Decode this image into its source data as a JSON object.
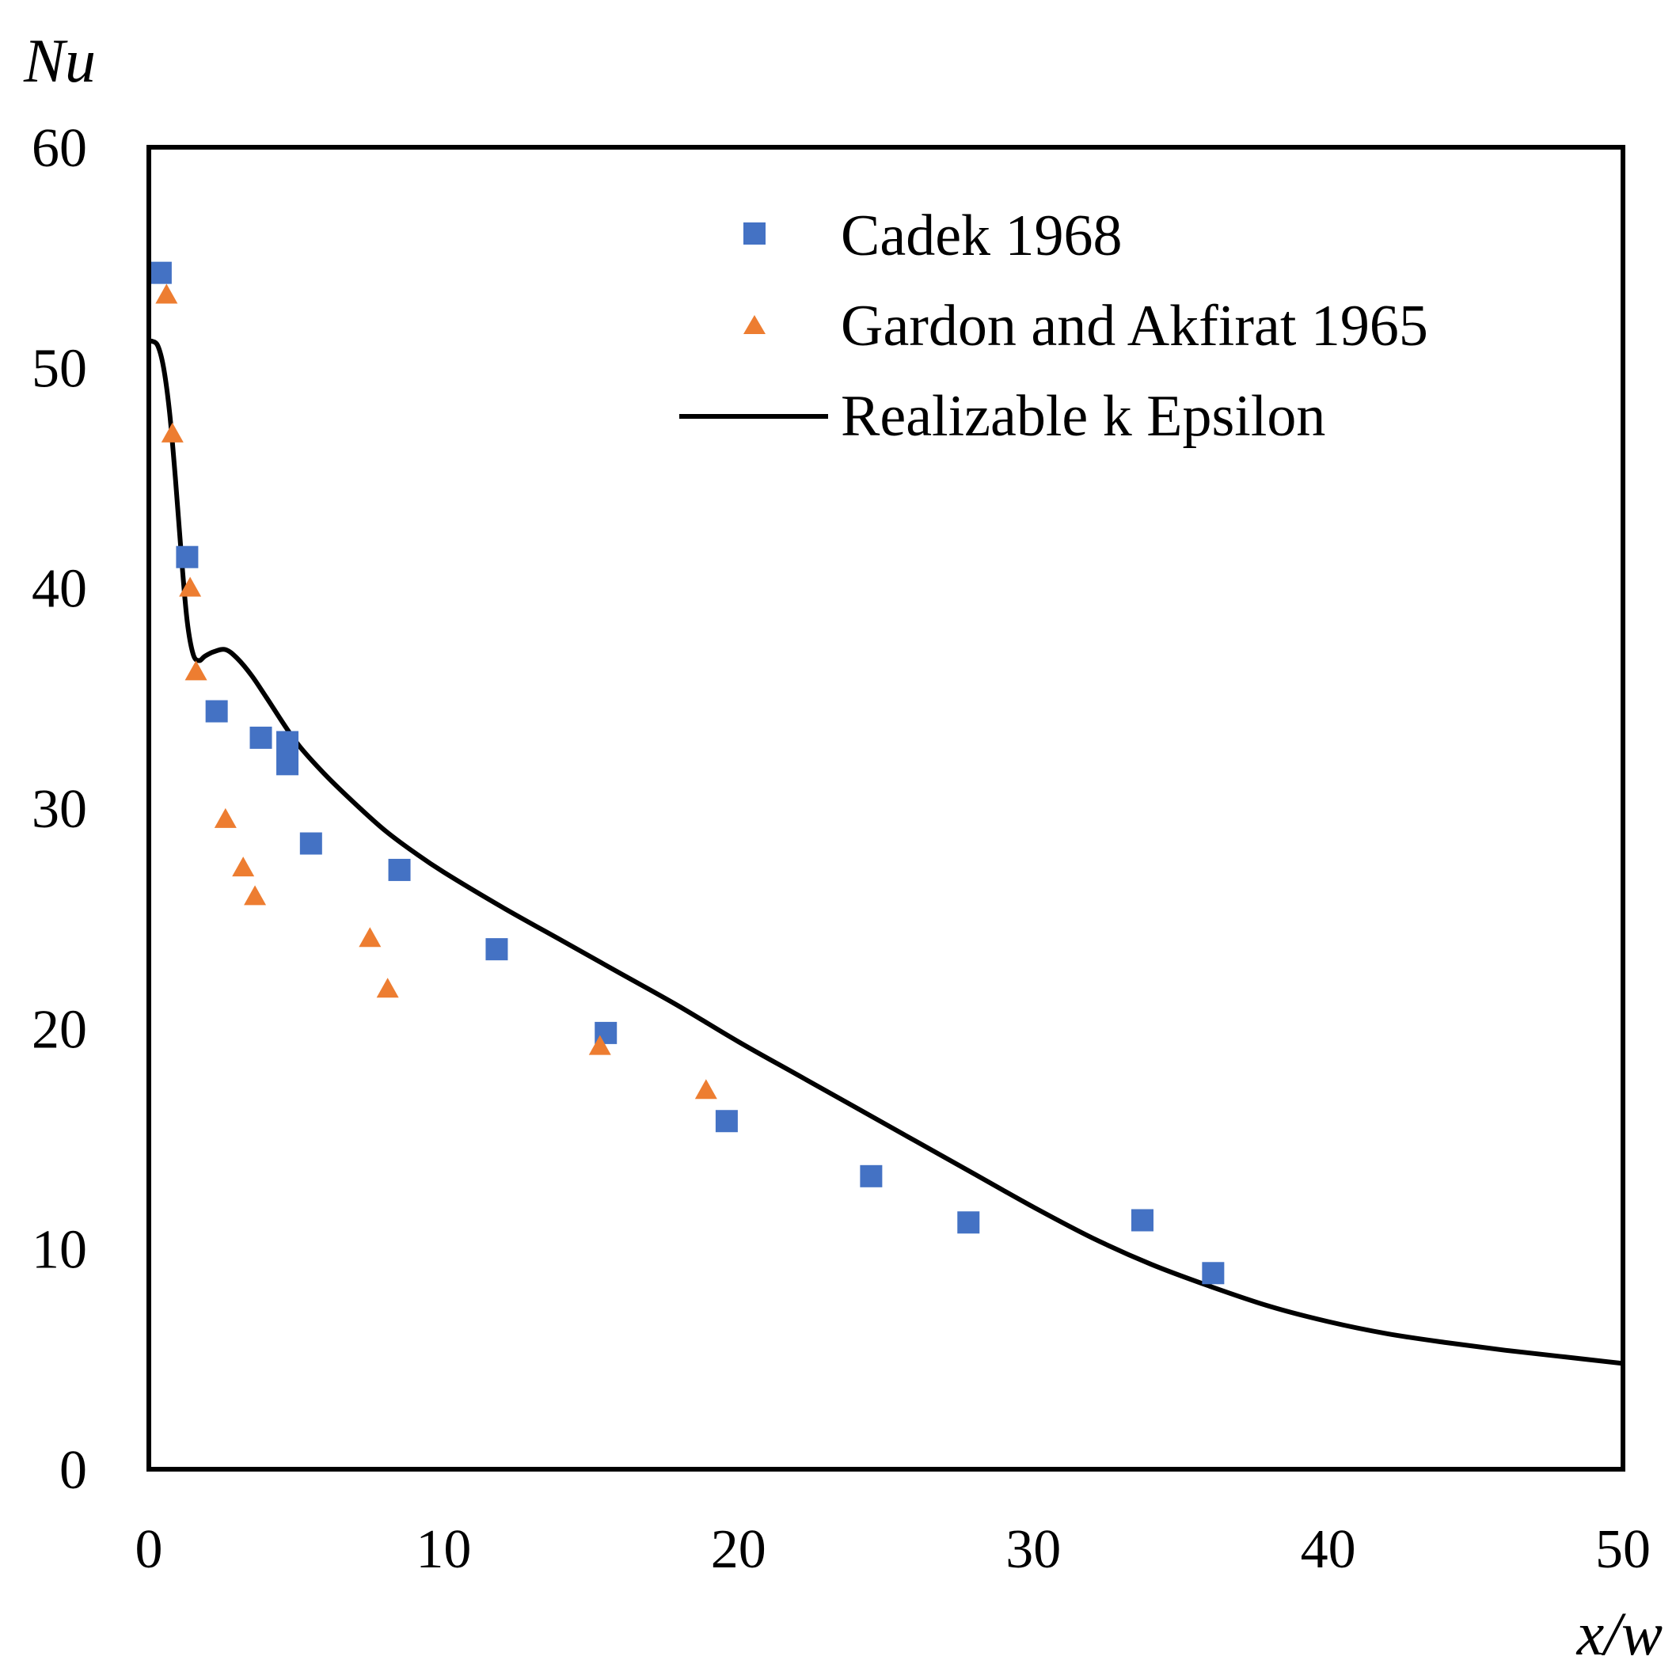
{
  "chart_data": {
    "type": "scatter",
    "title": "",
    "xlabel": "x/w",
    "ylabel": "Nu",
    "xlim": [
      0,
      50
    ],
    "ylim": [
      0,
      60
    ],
    "xticks": [
      "0",
      "10",
      "20",
      "30",
      "40",
      "50"
    ],
    "yticks": [
      "0",
      "10",
      "20",
      "30",
      "40",
      "50",
      "60"
    ],
    "grid": false,
    "legend_position": "top-right",
    "series": [
      {
        "name": "Cadek 1968",
        "kind": "scatter",
        "marker": "square",
        "color": "#4472C4",
        "x": [
          0.4,
          1.3,
          2.3,
          3.8,
          4.7,
          4.7,
          5.5,
          8.5,
          11.8,
          15.5,
          19.6,
          24.5,
          27.8,
          33.7,
          36.1
        ],
        "y": [
          54.3,
          41.4,
          34.4,
          33.2,
          32.0,
          33.0,
          28.4,
          27.2,
          23.6,
          19.8,
          15.8,
          13.3,
          11.2,
          11.3,
          8.9
        ]
      },
      {
        "name": "Gardon and Akfirat 1965",
        "kind": "scatter",
        "marker": "triangle",
        "color": "#ED7D31",
        "x": [
          0.6,
          0.8,
          1.4,
          1.6,
          2.6,
          3.2,
          3.6,
          7.5,
          8.1,
          15.3,
          18.9
        ],
        "y": [
          53.3,
          47.0,
          40.0,
          36.2,
          29.5,
          27.3,
          26.0,
          24.1,
          21.8,
          19.2,
          17.2
        ]
      },
      {
        "name": "Realizable k Epsilon",
        "kind": "line",
        "color": "#000000",
        "x": [
          0.1,
          0.3,
          0.5,
          0.7,
          0.9,
          1.1,
          1.3,
          1.5,
          1.7,
          1.9,
          2.2,
          2.6,
          3.0,
          3.5,
          4.0,
          5.0,
          6.0,
          7.0,
          8.0,
          9.0,
          10.0,
          12.0,
          14.0,
          16.0,
          18.0,
          20.0,
          22.0,
          24.0,
          26.0,
          28.0,
          30.0,
          32.0,
          34.0,
          36.0,
          38.0,
          40.0,
          42.0,
          44.0,
          46.0,
          48.0,
          50.0
        ],
        "y": [
          51.2,
          51.0,
          50.0,
          48.0,
          45.0,
          41.5,
          38.5,
          37.0,
          36.7,
          36.9,
          37.1,
          37.2,
          36.8,
          36.0,
          35.0,
          33.0,
          31.5,
          30.2,
          29.0,
          28.0,
          27.1,
          25.5,
          24.0,
          22.5,
          21.0,
          19.4,
          17.9,
          16.4,
          14.9,
          13.4,
          11.9,
          10.5,
          9.3,
          8.3,
          7.4,
          6.7,
          6.15,
          5.75,
          5.4,
          5.1,
          4.8
        ]
      }
    ]
  }
}
